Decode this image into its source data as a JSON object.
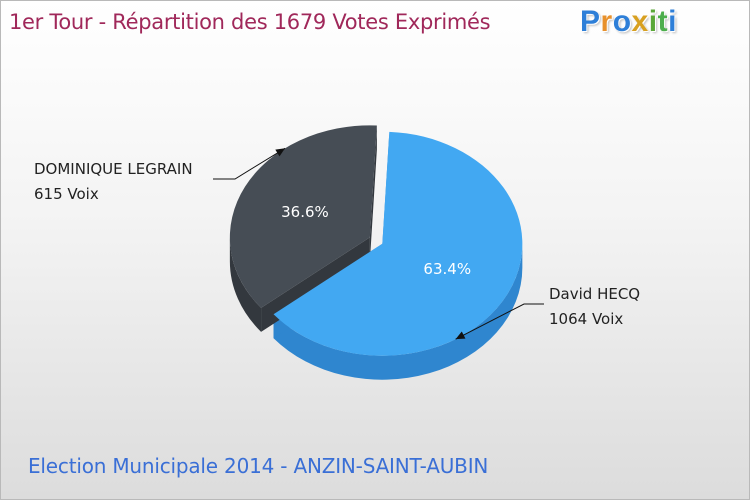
{
  "title": "1er Tour - Répartition des 1679 Votes Exprimés",
  "logo": {
    "text": "Proxiti"
  },
  "footer": "Election Municipale 2014 - ANZIN-SAINT-AUBIN",
  "colors": {
    "title": "#a0285a",
    "footer": "#3a6fd6",
    "slice_blue": "#42a8f2",
    "slice_dark": "#464d55"
  },
  "chart_data": {
    "type": "pie",
    "title": "1er Tour - Répartition des 1679 Votes Exprimés",
    "total": 1679,
    "slices": [
      {
        "name": "David HECQ",
        "votes": 1064,
        "votes_label": "1064 Voix",
        "percent": 63.4,
        "percent_label": "63.4%",
        "color": "#42a8f2",
        "side_color": "#2f86cf"
      },
      {
        "name": "DOMINIQUE LEGRAIN",
        "votes": 615,
        "votes_label": "615 Voix",
        "percent": 36.6,
        "percent_label": "36.6%",
        "color": "#464d55",
        "side_color": "#33383e"
      }
    ]
  }
}
